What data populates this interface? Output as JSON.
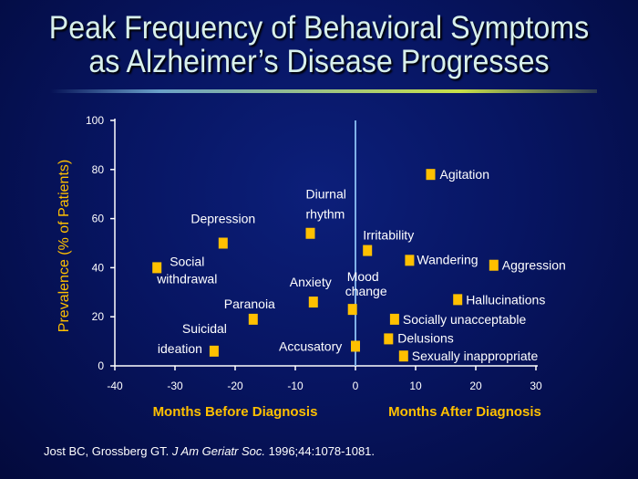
{
  "slide": {
    "title_line1": "Peak Frequency of Behavioral Symptoms",
    "title_line2": "as Alzheimer’s Disease Progresses"
  },
  "citation": {
    "authors": "Jost BC, Grossberg GT.",
    "journal": "J Am Geriatr Soc.",
    "details": "1996;44:1078-1081."
  },
  "colors": {
    "background": "#071562",
    "title": "#d8f0ec",
    "axis": "#ffffff",
    "marker": "#ffc000",
    "axis_title": "#ffc000",
    "diagnosis_line": "#7fb0e8"
  },
  "chart_data": {
    "type": "scatter",
    "title": "Peak Frequency of Behavioral Symptoms as Alzheimer’s Disease Progresses",
    "ylabel": "Prevalence (% of Patients)",
    "xlabel_left": "Months Before Diagnosis",
    "xlabel_right": "Months After Diagnosis",
    "xlim": [
      -40,
      30
    ],
    "ylim": [
      0,
      100
    ],
    "x_ticks": [
      "-40",
      "-30",
      "-20",
      "-10",
      "0",
      "10",
      "20",
      "30"
    ],
    "y_ticks": [
      "0",
      "20",
      "40",
      "60",
      "80",
      "100"
    ],
    "diagnosis_x": 0,
    "grid": false,
    "legend": "none",
    "points": [
      {
        "label": [
          "Social",
          "withdrawal"
        ],
        "x": -33,
        "y": 40
      },
      {
        "label": [
          "Depression"
        ],
        "x": -22,
        "y": 50
      },
      {
        "label": [
          "Suicidal",
          "ideation"
        ],
        "x": -23.5,
        "y": 6
      },
      {
        "label": [
          "Paranoia"
        ],
        "x": -17,
        "y": 19
      },
      {
        "label": [
          "Diurnal",
          "rhythm"
        ],
        "x": -7.5,
        "y": 54
      },
      {
        "label": [
          "Anxiety"
        ],
        "x": -7,
        "y": 26
      },
      {
        "label": [
          "Mood",
          "change"
        ],
        "x": -0.5,
        "y": 23
      },
      {
        "label": [
          "Accusatory"
        ],
        "x": 0,
        "y": 8
      },
      {
        "label": [
          "Irritability"
        ],
        "x": 2,
        "y": 47
      },
      {
        "label": [
          "Agitation"
        ],
        "x": 12.5,
        "y": 78
      },
      {
        "label": [
          "Wandering"
        ],
        "x": 9,
        "y": 43
      },
      {
        "label": [
          "Aggression"
        ],
        "x": 23,
        "y": 41
      },
      {
        "label": [
          "Hallucinations"
        ],
        "x": 17,
        "y": 27
      },
      {
        "label": [
          "Socially  unacceptable"
        ],
        "x": 6.5,
        "y": 19
      },
      {
        "label": [
          "Delusions"
        ],
        "x": 5.5,
        "y": 11
      },
      {
        "label": [
          "Sexually  inappropriate"
        ],
        "x": 8,
        "y": 4
      }
    ]
  }
}
